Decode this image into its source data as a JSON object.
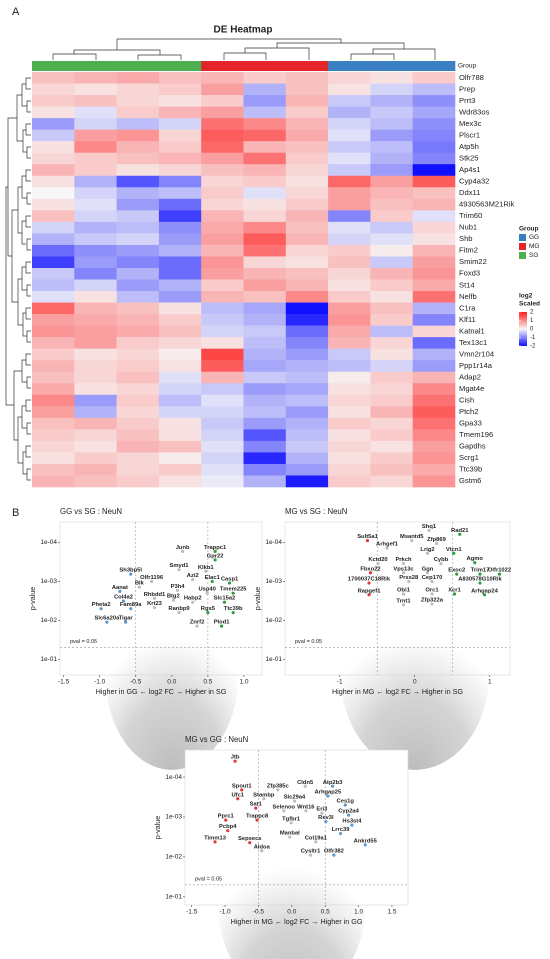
{
  "panel_labels": [
    "A",
    "B"
  ],
  "chart_data": [
    {
      "type": "heatmap",
      "title": "DE Heatmap",
      "group_title": "Group",
      "groups": {
        "names": [
          "GG",
          "MG",
          "SG"
        ],
        "colors": [
          "#3a7fc1",
          "#e3252b",
          "#4caf50"
        ]
      },
      "column_group": [
        "SG",
        "SG",
        "SG",
        "SG",
        "MG",
        "MG",
        "MG",
        "GG",
        "GG",
        "GG"
      ],
      "colorbar_title": [
        "log2",
        "Scaled"
      ],
      "zlim": [
        -2,
        2
      ],
      "zticks": [
        2,
        1,
        0,
        -1,
        -2
      ],
      "colorscale": [
        "#1010ff",
        "#f7f7f7",
        "#ff1a1a"
      ],
      "rows": [
        "Olfr788",
        "Prep",
        "Prrt3",
        "Wdr83os",
        "Mex3c",
        "Plscr1",
        "Atp5h",
        "Stk25",
        "Ap4s1",
        "Cyp4a32",
        "Ddx11",
        "4930563M21Rik",
        "Trim60",
        "Nub1",
        "Shb",
        "Fitm2",
        "Smim22",
        "Foxd3",
        "St14",
        "Nelfb",
        "C1ra",
        "Klf11",
        "Katnal1",
        "Tex13c1",
        "Vmn2r104",
        "Ppp1r14a",
        "Adap2",
        "Mgat4e",
        "Cish",
        "Ptch2",
        "Gpa33",
        "Tmem196",
        "Gapdhs",
        "Scrg1",
        "Ttc39b",
        "Gstm6"
      ],
      "values": [
        [
          0.5,
          0.6,
          0.7,
          0.5,
          0.6,
          0.4,
          0.5,
          0.3,
          0.2,
          0.4
        ],
        [
          0.3,
          0.2,
          0.3,
          0.4,
          0.8,
          -0.6,
          0.5,
          0.2,
          -0.3,
          -0.5
        ],
        [
          0.4,
          0.5,
          0.3,
          0.2,
          0.4,
          -0.8,
          0.6,
          -0.4,
          -0.6,
          -0.9
        ],
        [
          0.2,
          -0.2,
          0.4,
          0.6,
          0.8,
          -0.5,
          0.4,
          -0.6,
          -0.4,
          -0.7
        ],
        [
          -0.8,
          -0.3,
          -0.5,
          -0.3,
          1.2,
          1.0,
          0.6,
          -0.3,
          -0.5,
          -0.9
        ],
        [
          -0.4,
          0.8,
          0.9,
          0.3,
          1.4,
          1.3,
          0.7,
          -0.2,
          -0.8,
          -1.0
        ],
        [
          0.2,
          1.0,
          0.6,
          0.4,
          1.3,
          0.6,
          0.5,
          -0.4,
          -0.5,
          -1.1
        ],
        [
          0.3,
          0.4,
          0.5,
          0.6,
          0.8,
          1.2,
          0.4,
          -0.2,
          -0.6,
          -1.0
        ],
        [
          0.6,
          0.4,
          0.2,
          0.3,
          0.5,
          0.6,
          0.3,
          -0.4,
          -0.8,
          -2.0
        ],
        [
          0.2,
          -0.6,
          -1.4,
          -1.0,
          0.3,
          0.4,
          0.2,
          1.3,
          0.8,
          1.4
        ],
        [
          0.0,
          -0.3,
          -0.6,
          -0.5,
          0.4,
          -0.2,
          0.3,
          0.8,
          0.6,
          0.5
        ],
        [
          0.2,
          -0.2,
          -0.8,
          -1.2,
          0.3,
          0.2,
          0.4,
          0.8,
          0.5,
          0.6
        ],
        [
          0.5,
          -0.3,
          -0.4,
          -1.6,
          0.6,
          0.3,
          0.6,
          -1.0,
          0.4,
          -0.2
        ],
        [
          -0.3,
          -0.6,
          -0.5,
          -0.9,
          0.7,
          1.0,
          0.5,
          -0.2,
          -0.4,
          0.3
        ],
        [
          -0.6,
          -0.4,
          -0.3,
          -0.8,
          0.8,
          1.4,
          0.6,
          -0.3,
          -0.2,
          0.2
        ],
        [
          -1.2,
          -0.9,
          -0.8,
          -0.6,
          0.6,
          1.2,
          0.3,
          0.4,
          0.1,
          0.6
        ],
        [
          -1.6,
          -0.8,
          -1.0,
          -1.2,
          0.9,
          0.3,
          0.2,
          0.5,
          -0.4,
          0.8
        ],
        [
          -0.4,
          -1.0,
          -0.6,
          -1.2,
          0.8,
          0.6,
          0.5,
          0.3,
          0.6,
          0.9
        ],
        [
          -0.5,
          -0.3,
          -0.8,
          -0.6,
          0.4,
          0.8,
          0.6,
          0.2,
          0.4,
          0.7
        ],
        [
          -0.2,
          0.2,
          -0.5,
          -0.8,
          0.6,
          0.5,
          1.0,
          0.4,
          0.2,
          1.2
        ],
        [
          1.3,
          0.6,
          0.5,
          0.2,
          -0.5,
          -0.7,
          -2.0,
          0.8,
          0.5,
          -0.6
        ],
        [
          0.8,
          0.7,
          0.6,
          0.4,
          -0.4,
          -0.6,
          -1.8,
          0.9,
          0.4,
          -1.0
        ],
        [
          0.9,
          0.8,
          0.7,
          0.5,
          -0.3,
          -0.4,
          -1.2,
          0.7,
          -0.5,
          0.3
        ],
        [
          0.6,
          0.8,
          0.4,
          0.3,
          0.2,
          -0.5,
          -1.0,
          0.6,
          0.3,
          -1.2
        ],
        [
          0.4,
          0.2,
          0.3,
          0.1,
          1.6,
          -0.6,
          -0.8,
          -0.4,
          0.2,
          -0.6
        ],
        [
          0.6,
          0.3,
          0.4,
          0.2,
          1.4,
          -0.7,
          -0.6,
          -0.5,
          -0.3,
          -0.8
        ],
        [
          0.5,
          0.3,
          0.5,
          -0.2,
          0.6,
          -0.4,
          -0.5,
          0.1,
          0.4,
          0.6
        ],
        [
          0.7,
          0.2,
          0.3,
          -0.3,
          -0.4,
          -0.8,
          -0.7,
          0.2,
          0.3,
          1.0
        ],
        [
          1.0,
          -0.8,
          0.4,
          -0.5,
          -0.2,
          -0.6,
          -0.5,
          0.3,
          0.4,
          1.2
        ],
        [
          0.8,
          -0.6,
          0.3,
          -0.3,
          -0.3,
          -0.5,
          -0.8,
          0.2,
          0.6,
          1.4
        ],
        [
          0.5,
          0.6,
          0.4,
          0.2,
          -0.4,
          -0.8,
          -0.6,
          0.4,
          0.3,
          1.2
        ],
        [
          0.4,
          0.3,
          0.5,
          0.2,
          -0.3,
          -1.4,
          -0.5,
          0.2,
          0.4,
          1.0
        ],
        [
          0.3,
          0.2,
          0.6,
          0.5,
          -0.2,
          -1.0,
          -0.4,
          0.3,
          0.2,
          0.8
        ],
        [
          0.2,
          0.4,
          0.3,
          0.1,
          -0.3,
          -1.8,
          -0.6,
          0.2,
          0.4,
          0.9
        ],
        [
          0.5,
          0.6,
          0.3,
          0.4,
          -0.2,
          -1.0,
          -0.8,
          0.3,
          0.5,
          0.7
        ],
        [
          0.6,
          0.5,
          0.4,
          0.2,
          -0.1,
          -0.6,
          -1.9,
          0.4,
          0.3,
          0.9
        ]
      ]
    },
    {
      "type": "volcano",
      "title": "GG vs SG : NeuN",
      "xlabel": "Higher in GG ← log2 FC → Higher in SG",
      "ylabel": "p-value",
      "xlim": [
        -1.55,
        1.25
      ],
      "xticks": [
        -1.5,
        {
          "value": -1.0,
          "label": "-1.0"
        },
        -0.5,
        {
          "value": 0.0,
          "label": "0.0"
        },
        0.5,
        {
          "value": 1.0,
          "label": "1.0"
        }
      ],
      "ylim": [
        0.25,
        3e-05
      ],
      "log_y": true,
      "yticks": [
        {
          "value": 0.0001,
          "label": "1e-04"
        },
        {
          "value": 0.001,
          "label": "1e-03"
        },
        {
          "value": 0.01,
          "label": "1e-02"
        },
        {
          "value": 0.1,
          "label": "1e-01"
        }
      ],
      "threshold": {
        "value": 0.05,
        "label": "pval = 0.05"
      },
      "fc_cutoffs": [
        -0.5,
        0.5
      ],
      "down_color": "#5b9bd5",
      "up_color": "#2e9e3e",
      "ns_color": "#bdbdbd",
      "genes": [
        "Junb",
        "Trappc1",
        "Gpr22",
        "Klkb1",
        "Smyd1",
        "Sh3bp5l",
        "Azi2",
        "Elac1",
        "Casp1",
        "Olfr1196",
        "Aanat",
        "Blk",
        "P3h4",
        "Usp40",
        "Tmem225",
        "Rhbdd1",
        "Btg2",
        "Col4a2",
        "Habp2",
        "Slc15a2",
        "Pheta2",
        "Fam89a",
        "Krt23",
        "Ranbp9",
        "Rgs5",
        "Ttc39b",
        "Slc6a20a",
        "Tigar",
        "Znrf2",
        "Plod1"
      ],
      "x": [
        0.15,
        0.6,
        0.6,
        0.47,
        0.1,
        -0.57,
        0.29,
        0.56,
        0.8,
        -0.28,
        -0.72,
        -0.45,
        0.08,
        0.49,
        0.85,
        -0.24,
        0.02,
        -0.67,
        0.29,
        0.73,
        -0.98,
        -0.57,
        -0.24,
        0.1,
        0.5,
        0.85,
        -0.9,
        -0.64,
        0.35,
        0.69
      ],
      "y": [
        0.00017,
        0.00017,
        0.00028,
        0.00055,
        0.0005,
        0.00065,
        0.0009,
        0.001,
        0.0011,
        0.001,
        0.0018,
        0.0014,
        0.0017,
        0.002,
        0.002,
        0.0027,
        0.003,
        0.0032,
        0.0034,
        0.0034,
        0.005,
        0.005,
        0.0047,
        0.0063,
        0.0063,
        0.0063,
        0.011,
        0.011,
        0.014,
        0.014
      ]
    },
    {
      "type": "volcano",
      "title": "MG vs SG : NeuN",
      "xlabel": "Higher in MG ← log2 FC → Higher in SG",
      "ylabel": "p-value",
      "xlim": [
        -1.73,
        1.27
      ],
      "xticks": [
        -1,
        0,
        1
      ],
      "ylim": [
        0.25,
        3e-05
      ],
      "log_y": true,
      "yticks": [
        {
          "value": 0.0001,
          "label": "1e-04"
        },
        {
          "value": 0.001,
          "label": "1e-03"
        },
        {
          "value": 0.01,
          "label": "1e-02"
        },
        {
          "value": 0.1,
          "label": "1e-01"
        }
      ],
      "threshold": {
        "value": 0.05,
        "label": "pval = 0.05"
      },
      "fc_cutoffs": [
        -0.5,
        0.5
      ],
      "down_color": "#e0393e",
      "up_color": "#2e9e3e",
      "ns_color": "#bdbdbd",
      "genes": [
        "Shq1",
        "Rad21",
        "Sult5a1",
        "Msantd5",
        "Zfp869",
        "Arhgef1",
        "Lrig2",
        "Vtcn1",
        "Cybb",
        "Agmo",
        "Kctd20",
        "Prkch",
        "Fbxo22",
        "Vps13c",
        "Ggn",
        "Exoc2",
        "Trim17",
        "Olfr1022",
        "1700037C18Rik",
        "Prss28",
        "Cep170",
        "A830578G10Rik",
        "Arhgap24",
        "Rapgef1",
        "Obi1",
        "Orc1",
        "Xcr1",
        "Trnt1",
        "Zfp322a"
      ],
      "x": [
        0.19,
        0.6,
        -0.63,
        -0.04,
        0.29,
        -0.37,
        0.17,
        0.52,
        0.35,
        0.8,
        -0.49,
        -0.15,
        -0.59,
        -0.15,
        0.17,
        0.56,
        0.87,
        1.13,
        -0.61,
        -0.08,
        0.23,
        0.87,
        0.93,
        -0.61,
        -0.15,
        0.23,
        0.53,
        -0.15,
        0.23
      ],
      "y": [
        4.9e-05,
        6.2e-05,
        9e-05,
        9e-05,
        0.000106,
        0.00014,
        0.00019,
        0.00019,
        0.00035,
        0.00033,
        0.00035,
        0.00035,
        0.0006,
        0.0006,
        0.0006,
        0.00065,
        0.00065,
        0.00065,
        0.0011,
        0.001,
        0.001,
        0.0011,
        0.0022,
        0.0022,
        0.0021,
        0.0021,
        0.0021,
        0.004,
        0.0038
      ]
    },
    {
      "type": "volcano",
      "title": "MG vs GG : NeuN",
      "xlabel": "Higher in MG ← log2 FC → Higher in GG",
      "ylabel": "p-value",
      "xlim": [
        -1.6,
        1.74
      ],
      "xticks": [
        -1.5,
        {
          "value": -1.0,
          "label": "-1.0"
        },
        -0.5,
        {
          "value": 0.0,
          "label": "0.0"
        },
        0.5,
        {
          "value": 1.0,
          "label": "1.0"
        },
        1.5
      ],
      "ylim": [
        0.16,
        2.1e-05
      ],
      "log_y": true,
      "yticks": [
        {
          "value": 0.0001,
          "label": "1e-04"
        },
        {
          "value": 0.001,
          "label": "1e-03"
        },
        {
          "value": 0.01,
          "label": "1e-02"
        },
        {
          "value": 0.1,
          "label": "1e-01"
        }
      ],
      "threshold": {
        "value": 0.05,
        "label": "pval = 0.05"
      },
      "fc_cutoffs": [
        -0.5,
        0.5
      ],
      "down_color": "#e0393e",
      "up_color": "#5b9bd5",
      "ns_color": "#bdbdbd",
      "genes": [
        "Jtb",
        "Cldn5",
        "Atp2b3",
        "Spout1",
        "Zfp385c",
        "Arhgap25",
        "Ufc1",
        "Stambp",
        "Slc29a4",
        "Ces1g",
        "Sat1",
        "Selenoo",
        "Wnt16",
        "Eri3",
        "Cyp2a4",
        "Pprc1",
        "Trappc8",
        "Tgfbr1",
        "Rev3l",
        "Hs3st4",
        "Pcbp4",
        "Lrrc39",
        "Manbal",
        "Timm13",
        "Sepsecs",
        "Col19a1",
        "Ankrd55",
        "Aldoa",
        "Cysltr1",
        "Olfr382"
      ],
      "x": [
        -0.85,
        0.2,
        0.61,
        -0.75,
        -0.21,
        0.54,
        -0.81,
        -0.42,
        0.04,
        0.8,
        -0.54,
        -0.12,
        0.21,
        0.45,
        0.85,
        -0.99,
        -0.52,
        -0.01,
        0.51,
        0.9,
        -0.96,
        0.73,
        -0.03,
        -1.15,
        -0.63,
        0.36,
        1.1,
        -0.45,
        0.28,
        0.63
      ],
      "y": [
        4e-05,
        0.00017,
        0.00017,
        0.00021,
        0.00021,
        0.0003,
        0.00035,
        0.00035,
        0.0004,
        0.0005,
        0.0006,
        0.0007,
        0.0007,
        0.0008,
        0.0009,
        0.0012,
        0.0012,
        0.0014,
        0.0013,
        0.0016,
        0.0022,
        0.0026,
        0.0032,
        0.0042,
        0.0044,
        0.0042,
        0.005,
        0.007,
        0.009,
        0.009
      ]
    }
  ]
}
